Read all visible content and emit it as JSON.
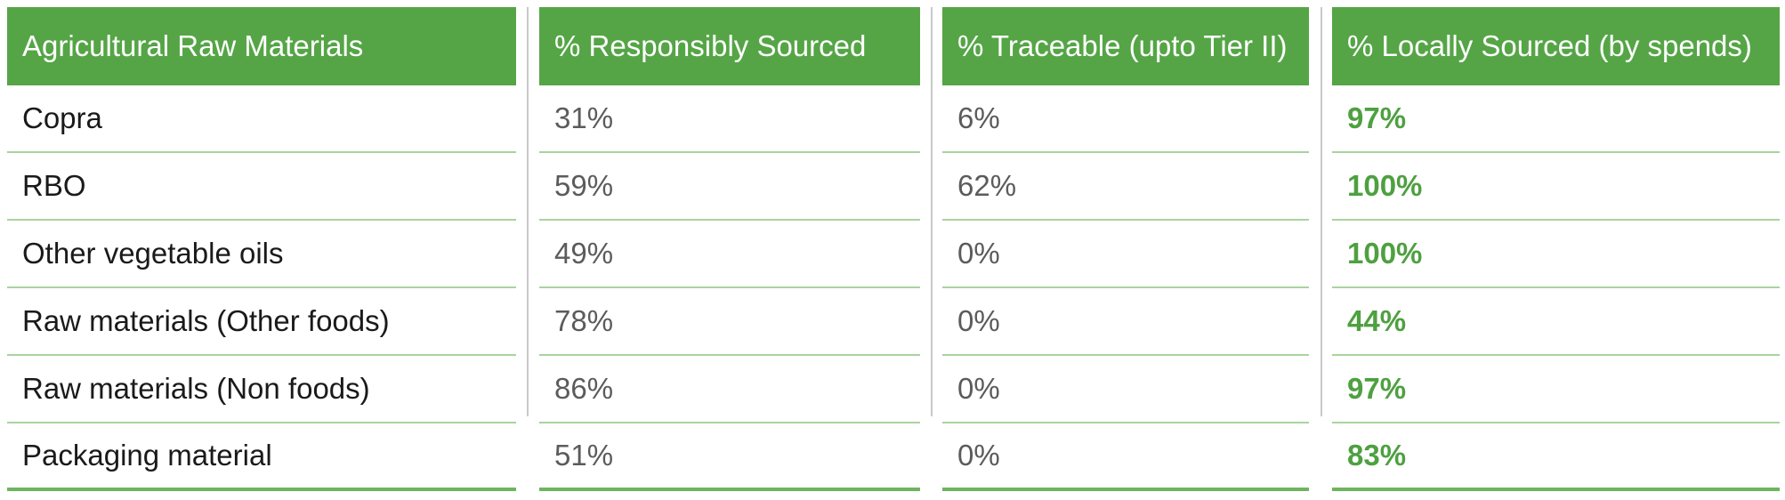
{
  "table": {
    "headers": [
      "Agricultural Raw Materials",
      "% Responsibly Sourced",
      "% Traceable (upto Tier II)",
      "% Locally Sourced (by spends)"
    ],
    "rows": [
      {
        "material": "Copra",
        "responsibly_sourced": "31%",
        "traceable": "6%",
        "locally_sourced": "97%"
      },
      {
        "material": "RBO",
        "responsibly_sourced": "59%",
        "traceable": "62%",
        "locally_sourced": "100%"
      },
      {
        "material": "Other vegetable oils",
        "responsibly_sourced": "49%",
        "traceable": "0%",
        "locally_sourced": "100%"
      },
      {
        "material": "Raw materials (Other foods)",
        "responsibly_sourced": "78%",
        "traceable": "0%",
        "locally_sourced": "44%"
      },
      {
        "material": "Raw materials (Non foods)",
        "responsibly_sourced": "86%",
        "traceable": "0%",
        "locally_sourced": "97%"
      },
      {
        "material": "Packaging material",
        "responsibly_sourced": "51%",
        "traceable": "0%",
        "locally_sourced": "83%"
      }
    ]
  },
  "colors": {
    "header_bg": "#55a546",
    "header_text": "#ffffff",
    "row_divider": "#a9d39f",
    "accent_text": "#4ea040"
  }
}
